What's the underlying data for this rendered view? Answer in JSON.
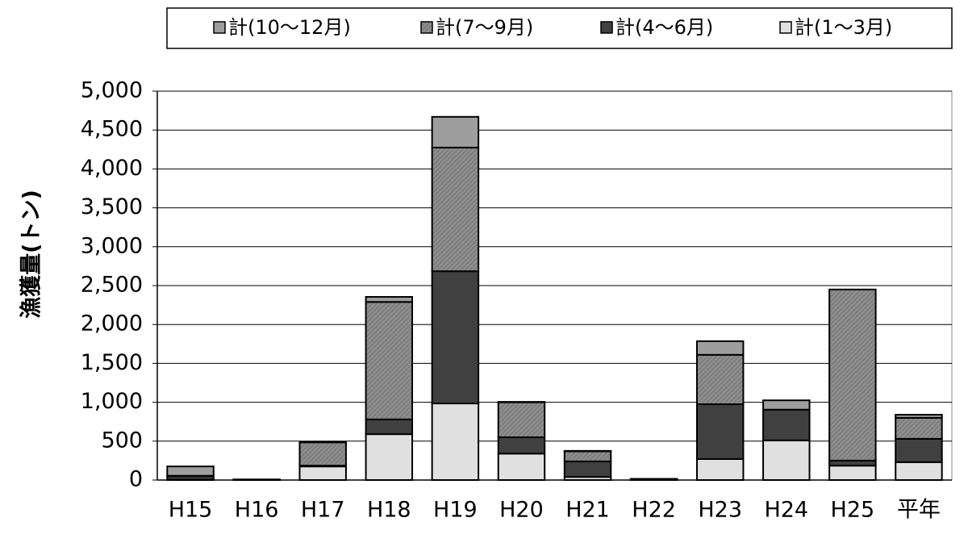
{
  "chart_data": {
    "type": "stacked_bar",
    "y_label": "漁獲量(トン)",
    "categories": [
      "H15",
      "H16",
      "H17",
      "H18",
      "H19",
      "H20",
      "H21",
      "H22",
      "H23",
      "H24",
      "H25",
      "平年"
    ],
    "series": [
      {
        "name": "計(1～3月)",
        "color": "#e0e0e0",
        "values": [
          5,
          0,
          175,
          590,
          985,
          340,
          40,
          5,
          270,
          510,
          185,
          230
        ]
      },
      {
        "name": "計(4～6月)",
        "color": "#404040",
        "values": [
          45,
          5,
          10,
          190,
          1700,
          210,
          200,
          5,
          705,
          395,
          65,
          300
        ]
      },
      {
        "name": "計(7～9月)",
        "color": "#8c8c8c",
        "values": [
          5,
          0,
          300,
          1510,
          1590,
          450,
          130,
          3,
          635,
          0,
          2200,
          270
        ]
      },
      {
        "name": "計(10～12月)",
        "color": "#9e9e9e",
        "values": [
          120,
          3,
          5,
          65,
          395,
          5,
          5,
          2,
          175,
          120,
          0,
          40
        ]
      }
    ],
    "ylim": [
      0,
      5000
    ],
    "yticks": [
      0,
      500,
      {
        "value": 1000,
        "label": "1,000"
      },
      {
        "value": 1500,
        "label": "1,500"
      },
      {
        "value": 2000,
        "label": "2,000"
      },
      {
        "value": 2500,
        "label": "2,500"
      },
      {
        "value": 3000,
        "label": "3,000"
      },
      {
        "value": 3500,
        "label": "3,500"
      },
      {
        "value": 4000,
        "label": "4,000"
      },
      {
        "value": 4500,
        "label": "4,500"
      },
      {
        "value": 5000,
        "label": "5,000"
      }
    ],
    "grid": true
  }
}
